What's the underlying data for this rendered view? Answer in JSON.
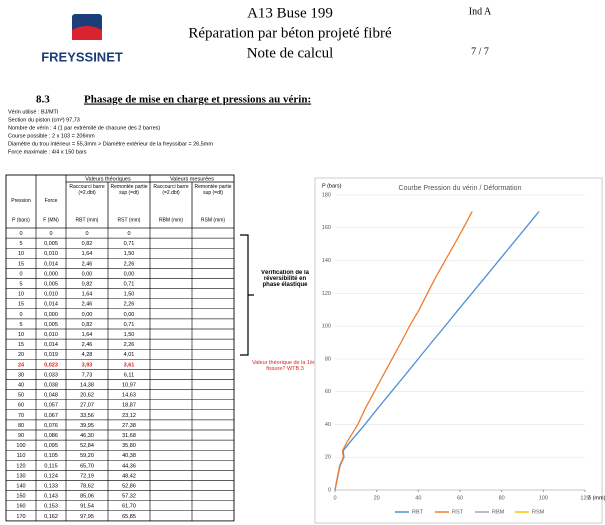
{
  "header": {
    "logo": "FREYSSINET",
    "title_lines": [
      "A13 Buse 199",
      "Réparation par béton projeté fibré",
      "Note de calcul"
    ],
    "index": "Ind A",
    "page": "7 / 7"
  },
  "section": {
    "number": "8.3",
    "title": "Phasage de mise en charge et pressions au vérin:"
  },
  "notes": [
    "Vérin utilisé :   BJ/MTI",
    "Section du piston   (cm²)   97,73",
    "Nombre de vérin : 4 (1 par extrémité de chacune des 2 barres)",
    "Course possible : 2 x 103 = 206mm",
    "Diamètre du trou intérieur = 55,3mm > Diamètre extérieur de la freyssibar = 26,5mm",
    "Force maximale : 4/4 x 150 bars"
  ],
  "table": {
    "groups": [
      "Valeurs théoriques",
      "Valeurs mesurées"
    ],
    "headers": [
      "Pression",
      "Force",
      "Raccourci barre (=2.dbt)",
      "Remontée partie sup (=dt)",
      "Raccourci barre (=2.dbt)",
      "Remontée partie sup (=dt)"
    ],
    "units": [
      "P (bars)",
      "F (MN)",
      "RBT (mm)",
      "RST (mm)",
      "RBM (mm)",
      "RSM (mm)"
    ],
    "highlight_color": "#e02020",
    "highlight_rows": [
      13
    ],
    "rows": [
      [
        "0",
        "0",
        "0",
        "0"
      ],
      [
        "5",
        "0,005",
        "0,82",
        "0,71"
      ],
      [
        "10",
        "0,010",
        "1,64",
        "1,50"
      ],
      [
        "15",
        "0,014",
        "2,46",
        "2,26"
      ],
      [
        "0",
        "0,000",
        "0,00",
        "0,00"
      ],
      [
        "5",
        "0,005",
        "0,82",
        "0,71"
      ],
      [
        "10",
        "0,010",
        "1,64",
        "1,50"
      ],
      [
        "15",
        "0,014",
        "2,46",
        "2,26"
      ],
      [
        "0",
        "0,000",
        "0,00",
        "0,00"
      ],
      [
        "5",
        "0,005",
        "0,82",
        "0,71"
      ],
      [
        "10",
        "0,010",
        "1,64",
        "1,50"
      ],
      [
        "15",
        "0,014",
        "2,46",
        "2,26"
      ],
      [
        "20",
        "0,019",
        "4,28",
        "4,01"
      ],
      [
        "24",
        "0,023",
        "3,93",
        "3,61"
      ],
      [
        "30",
        "0,033",
        "7,73",
        "6,11"
      ],
      [
        "40",
        "0,038",
        "14,38",
        "10,97"
      ],
      [
        "50",
        "0,048",
        "20,62",
        "14,63"
      ],
      [
        "60",
        "0,057",
        "27,07",
        "18,87"
      ],
      [
        "70",
        "0,067",
        "33,56",
        "23,12"
      ],
      [
        "80",
        "0,076",
        "39,95",
        "27,38"
      ],
      [
        "90",
        "0,086",
        "46,30",
        "31,68"
      ],
      [
        "100",
        "0,095",
        "52,84",
        "35,80"
      ],
      [
        "110",
        "0,105",
        "59,20",
        "40,38"
      ],
      [
        "120",
        "0,115",
        "65,70",
        "44,36"
      ],
      [
        "130",
        "0,124",
        "72,19",
        "48,42"
      ],
      [
        "140",
        "0,133",
        "78,62",
        "52,86"
      ],
      [
        "150",
        "0,143",
        "85,06",
        "57,32"
      ],
      [
        "160",
        "0,153",
        "91,54",
        "61,70"
      ],
      [
        "170",
        "0,162",
        "97,95",
        "65,85"
      ]
    ]
  },
  "annotations": {
    "reversibility": "Vérification de la réversibilité en phase élastique",
    "crack": "Valeur théorique de la 1ère fissure? WTB 3"
  },
  "chart_data": {
    "type": "line",
    "title": "Courbe Pression du vérin / Déformation",
    "y_label": "P (bars)",
    "x_label": "δ (mm)",
    "xlim": [
      0,
      120
    ],
    "xticks": [
      0,
      20,
      40,
      60,
      80,
      100,
      120
    ],
    "ylim": [
      0,
      180
    ],
    "yticks": [
      0,
      20,
      40,
      60,
      80,
      100,
      120,
      140,
      160,
      180
    ],
    "series": [
      {
        "name": "RBT",
        "color": "#4f8fd6",
        "x": [
          0,
          0.82,
          1.64,
          2.46,
          0,
          0.82,
          1.64,
          2.46,
          0,
          0.82,
          1.64,
          2.46,
          4.28,
          3.93,
          7.73,
          14.38,
          20.62,
          27.07,
          33.56,
          39.95,
          46.3,
          52.84,
          59.2,
          65.7,
          72.19,
          78.62,
          85.06,
          91.54,
          97.95
        ],
        "values": [
          0,
          5,
          10,
          15,
          0,
          5,
          10,
          15,
          0,
          5,
          10,
          15,
          20,
          24,
          30,
          40,
          50,
          60,
          70,
          80,
          90,
          100,
          110,
          120,
          130,
          140,
          150,
          160,
          170
        ]
      },
      {
        "name": "RST",
        "color": "#ed7d31",
        "x": [
          0,
          0.71,
          1.5,
          2.26,
          0,
          0.71,
          1.5,
          2.26,
          0,
          0.71,
          1.5,
          2.26,
          4.01,
          3.61,
          6.11,
          10.97,
          14.63,
          18.87,
          23.12,
          27.38,
          31.68,
          35.8,
          40.38,
          44.36,
          48.42,
          52.86,
          57.32,
          61.7,
          65.85
        ],
        "values": [
          0,
          5,
          10,
          15,
          0,
          5,
          10,
          15,
          0,
          5,
          10,
          15,
          20,
          24,
          30,
          40,
          50,
          60,
          70,
          80,
          90,
          100,
          110,
          120,
          130,
          140,
          150,
          160,
          170
        ]
      },
      {
        "name": "RBM",
        "color": "#a5a5a5",
        "x": [],
        "values": []
      },
      {
        "name": "RSM",
        "color": "#ffc000",
        "x": [],
        "values": []
      }
    ]
  }
}
